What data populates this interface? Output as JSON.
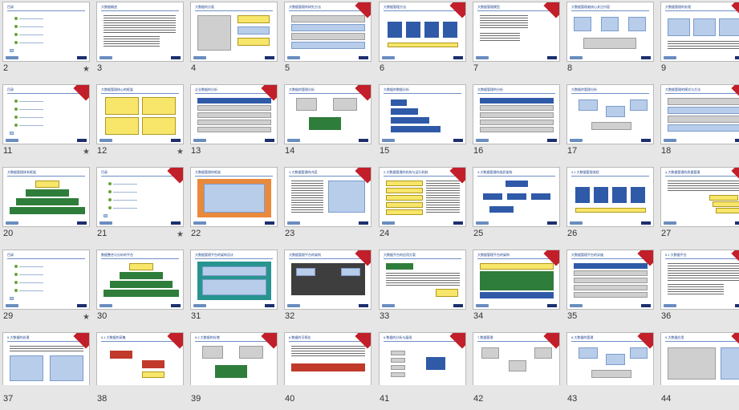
{
  "slides": [
    {
      "num": "2",
      "title": "目录",
      "star": "★",
      "type": "agenda"
    },
    {
      "num": "3",
      "title": "大数据概述",
      "star": "",
      "type": "text"
    },
    {
      "num": "4",
      "title": "大数据的分类",
      "star": "",
      "type": "blocks"
    },
    {
      "num": "5",
      "title": "大数据管理的研究方法",
      "star": "",
      "type": "layers"
    },
    {
      "num": "6",
      "title": "大数据管理方法",
      "star": "",
      "type": "flow"
    },
    {
      "num": "7",
      "title": "大数据管理模型",
      "star": "",
      "type": "text-red"
    },
    {
      "num": "8",
      "title": "大数据管理者核心关注内容",
      "star": "",
      "type": "db"
    },
    {
      "num": "9",
      "title": "大数据管理的处理",
      "star": "",
      "type": "pics"
    },
    {
      "num": "11",
      "title": "目录",
      "star": "★",
      "type": "agenda"
    },
    {
      "num": "12",
      "title": "大数据管理核心的框架",
      "star": "★",
      "type": "yellow4"
    },
    {
      "num": "13",
      "title": "企业数据的分析",
      "star": "",
      "type": "table"
    },
    {
      "num": "14",
      "title": "大数据的管理分析",
      "star": "",
      "type": "network"
    },
    {
      "num": "15",
      "title": "大数据的数据分析",
      "star": "",
      "type": "bars"
    },
    {
      "num": "16",
      "title": "大数据管理的分析",
      "star": "",
      "type": "table"
    },
    {
      "num": "17",
      "title": "大数据的管理分析",
      "star": "",
      "type": "cluster"
    },
    {
      "num": "18",
      "title": "大数据管理的模式与方法",
      "star": "★",
      "type": "layers"
    },
    {
      "num": "20",
      "title": "大数据管理体系框架",
      "star": "",
      "type": "pyramid"
    },
    {
      "num": "21",
      "title": "目录",
      "star": "★",
      "type": "agenda"
    },
    {
      "num": "22",
      "title": "大数据管理的框架",
      "star": "",
      "type": "orange"
    },
    {
      "num": "23",
      "title": "1.大数据管理的内容",
      "star": "",
      "type": "textbox"
    },
    {
      "num": "24",
      "title": "2.大数据管理的机构与运行机制",
      "star": "",
      "type": "list"
    },
    {
      "num": "25",
      "title": "3.大数据管理的组织架构",
      "star": "",
      "type": "org"
    },
    {
      "num": "26",
      "title": "3.1 大数据管理流程",
      "star": "",
      "type": "flow"
    },
    {
      "num": "27",
      "title": "4.大数据管理的质量管理",
      "star": "",
      "type": "yellowstack"
    },
    {
      "num": "29",
      "title": "目录",
      "star": "★",
      "type": "agenda"
    },
    {
      "num": "30",
      "title": "数据整合与分析的平台",
      "star": "",
      "type": "pyramid"
    },
    {
      "num": "31",
      "title": "大数据管理平台的架构设计",
      "star": "",
      "type": "teal"
    },
    {
      "num": "32",
      "title": "大数据管理平台的架构",
      "star": "",
      "type": "dark"
    },
    {
      "num": "33",
      "title": "大数据平台的应用方案",
      "star": "",
      "type": "mixed"
    },
    {
      "num": "34",
      "title": "大数据管理平台的架构",
      "star": "",
      "type": "green"
    },
    {
      "num": "35",
      "title": "大数据管理平台的实施",
      "star": "",
      "type": "table"
    },
    {
      "num": "36",
      "title": "5.1 大数据平台",
      "star": "",
      "type": "text"
    },
    {
      "num": "37",
      "title": "5.大数据的处理",
      "star": "",
      "type": "screens"
    },
    {
      "num": "38",
      "title": "5.1 大数据的采集",
      "star": "",
      "type": "redtree"
    },
    {
      "num": "39",
      "title": "5.2 大数据的存储",
      "star": "",
      "type": "network"
    },
    {
      "num": "40",
      "title": "6.数据的可视化",
      "star": "",
      "type": "redbar"
    },
    {
      "num": "41",
      "title": "6.数据的分析与展现",
      "star": "",
      "type": "chain"
    },
    {
      "num": "42",
      "title": "7.数据管理",
      "star": "",
      "type": "diagram"
    },
    {
      "num": "43",
      "title": "8.大数据的管理",
      "star": "",
      "type": "cluster"
    },
    {
      "num": "44",
      "title": "9.大数据应用",
      "star": "",
      "type": "chart"
    }
  ]
}
